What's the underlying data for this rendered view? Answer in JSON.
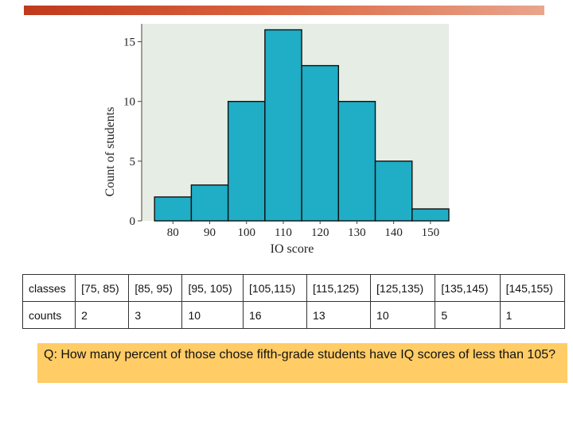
{
  "chart_data": {
    "type": "bar",
    "bins": [
      {
        "start": 75,
        "end": 85,
        "value": 2
      },
      {
        "start": 85,
        "end": 95,
        "value": 3
      },
      {
        "start": 95,
        "end": 105,
        "value": 10
      },
      {
        "start": 105,
        "end": 115,
        "value": 16
      },
      {
        "start": 115,
        "end": 125,
        "value": 13
      },
      {
        "start": 125,
        "end": 135,
        "value": 10
      },
      {
        "start": 135,
        "end": 145,
        "value": 5
      },
      {
        "start": 145,
        "end": 155,
        "value": 1
      }
    ],
    "xticks": [
      "80",
      "90",
      "100",
      "110",
      "120",
      "130",
      "140",
      "150"
    ],
    "yticks": [
      "0",
      "5",
      "10",
      "15"
    ],
    "xlabel": "IQ score",
    "ylabel": "Count of students",
    "xlim": [
      71.5,
      155
    ],
    "ylim": [
      0,
      16.5
    ],
    "bar_color": "#20adc6",
    "plot_background": "#e6ede4",
    "grid": false
  },
  "table": {
    "rows": [
      {
        "header": "classes",
        "cells": [
          "[75, 85)",
          "[85, 95)",
          "[95, 105)",
          "[105,115)",
          "[115,125)",
          "[125,135)",
          "[135,145)",
          "[145,155)"
        ]
      },
      {
        "header": "counts",
        "cells": [
          "2",
          "3",
          "10",
          "16",
          "13",
          "10",
          "5",
          "1"
        ]
      }
    ]
  },
  "question": "Q: How many percent of those chose fifth-grade students have IQ scores of less than 105?",
  "colors": {
    "top_bar": "#d9623e",
    "question_background": "#ffcc66"
  }
}
